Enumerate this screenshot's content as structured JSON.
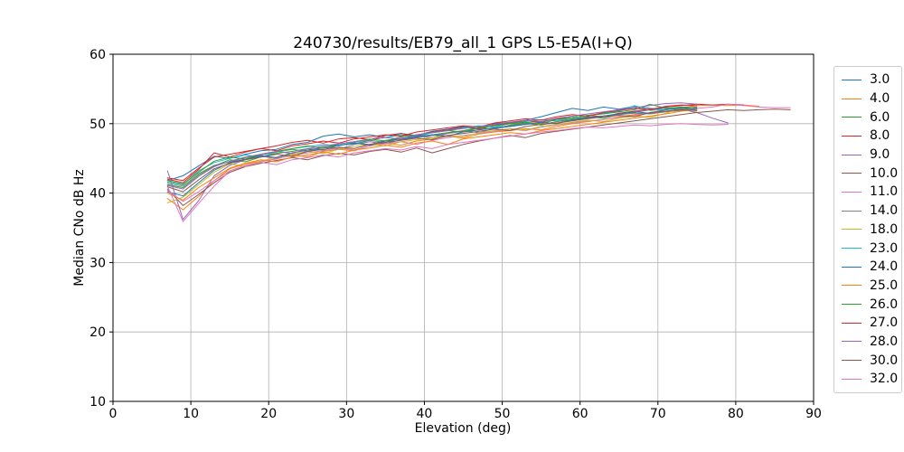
{
  "figure": {
    "title": "240730/results/EB79_all_1 GPS L5-E5A(I+Q)",
    "xlabel": "Elevation (deg)",
    "ylabel": "Median CNo dB Hz"
  },
  "colors": {
    "background": "#ffffff",
    "spine": "#000000",
    "grid": "#b0b0b0",
    "tick": "#000000",
    "legend_border": "#cccccc"
  },
  "chart_data": {
    "type": "line",
    "title": "240730/results/EB79_all_1 GPS L5-E5A(I+Q)",
    "xlabel": "Elevation (deg)",
    "ylabel": "Median CNo dB Hz",
    "xlim": [
      0,
      90
    ],
    "ylim": [
      10,
      60
    ],
    "xticks": [
      0,
      10,
      20,
      30,
      40,
      50,
      60,
      70,
      80,
      90
    ],
    "yticks": [
      10,
      20,
      30,
      40,
      50,
      60
    ],
    "grid": true,
    "legend_position": "outside-right",
    "series": [
      {
        "name": "3.0",
        "color": "#1f77b4",
        "x_start": 7,
        "x_step": 2,
        "values": [
          41.8,
          42.5,
          43.9,
          45.3,
          45.0,
          45.6,
          46.1,
          46.3,
          47.0,
          47.3,
          48.2,
          48.5,
          48.1,
          48.4,
          48.0,
          48.6,
          48.3,
          48.9,
          49.2,
          49.6,
          49.3,
          50.0,
          50.2,
          50.5,
          51.0,
          51.6,
          52.2,
          51.9,
          52.4,
          52.1,
          52.5,
          52.2,
          52.0,
          52.2,
          52.4
        ]
      },
      {
        "name": "4.0",
        "color": "#ff7f0e",
        "x_start": 7,
        "x_step": 2,
        "values": [
          39.2,
          37.6,
          39.5,
          41.8,
          43.5,
          44.2,
          44.6,
          44.9,
          45.6,
          45.2,
          46.0,
          46.3,
          46.1,
          46.8,
          47.2,
          46.9,
          47.5,
          47.8,
          48.2,
          47.9,
          48.5,
          48.8,
          49.0,
          49.3,
          49.1,
          49.6,
          50.0,
          50.3,
          50.6,
          51.0,
          51.3,
          51.6,
          52.0,
          52.3,
          52.6,
          52.7,
          52.6,
          52.7,
          52.5
        ]
      },
      {
        "name": "6.0",
        "color": "#2ca02c",
        "x_start": 7,
        "x_step": 2,
        "values": [
          41.2,
          40.8,
          42.6,
          43.9,
          44.8,
          44.5,
          45.2,
          45.7,
          46.0,
          46.4,
          46.2,
          46.9,
          47.1,
          47.6,
          47.3,
          47.9,
          48.1,
          48.4,
          48.7,
          49.0,
          49.4,
          49.2,
          49.8,
          50.1,
          49.8,
          50.3,
          50.7,
          51.0,
          50.8,
          51.3,
          51.6,
          52.0,
          52.3,
          51.9,
          52.2
        ]
      },
      {
        "name": "8.0",
        "color": "#d62728",
        "x_start": 7,
        "x_step": 2,
        "values": [
          42.0,
          41.5,
          43.4,
          45.8,
          45.2,
          45.9,
          46.4,
          46.8,
          47.3,
          47.6,
          47.2,
          47.8,
          48.0,
          47.7,
          48.3,
          48.6,
          48.2,
          48.8,
          49.1,
          49.5,
          49.2,
          49.8,
          50.1,
          50.4,
          50.2,
          50.7,
          50.9,
          51.2,
          51.0,
          51.5,
          51.8,
          52.1,
          52.4,
          52.6,
          52.8,
          52.7,
          52.8,
          52.7
        ]
      },
      {
        "name": "9.0",
        "color": "#9467bd",
        "x_start": 7,
        "x_step": 2,
        "values": [
          43.2,
          36.2,
          38.9,
          42.5,
          44.0,
          44.8,
          45.3,
          45.0,
          45.8,
          46.2,
          46.6,
          46.3,
          47.0,
          47.4,
          47.1,
          47.7,
          48.0,
          48.3,
          48.6,
          49.0,
          48.7,
          49.3,
          49.6,
          49.9,
          50.2,
          50.0,
          50.5,
          50.8,
          51.1,
          51.4,
          51.7,
          52.0,
          52.3,
          52.1,
          51.6,
          50.8,
          50.1
        ]
      },
      {
        "name": "10.0",
        "color": "#8c564b",
        "x_start": 7,
        "x_step": 2,
        "values": [
          40.6,
          38.2,
          39.8,
          41.5,
          43.0,
          43.8,
          44.3,
          44.7,
          45.1,
          44.8,
          45.4,
          45.7,
          45.5,
          46.0,
          46.3,
          45.9,
          46.5,
          45.8,
          46.4,
          47.0,
          47.5,
          47.9,
          48.3,
          48.0,
          48.6,
          48.9,
          49.2,
          49.5,
          49.8,
          50.1,
          50.4,
          50.7,
          51.0,
          51.3,
          51.6,
          51.8,
          52.0,
          51.9,
          52.0,
          52.1,
          52.0
        ]
      },
      {
        "name": "11.0",
        "color": "#e377c2",
        "x_start": 7,
        "x_step": 2,
        "values": [
          41.0,
          35.9,
          38.5,
          41.0,
          43.2,
          44.0,
          44.5,
          45.0,
          45.4,
          45.8,
          46.1,
          46.5,
          46.2,
          46.8,
          47.1,
          47.4,
          47.0,
          47.6,
          48.0,
          48.3,
          48.6,
          48.9,
          49.2,
          49.0,
          49.5,
          49.8,
          50.1,
          50.4,
          50.6,
          50.9,
          51.2,
          51.5,
          51.8,
          52.0,
          52.2,
          52.4,
          52.8,
          52.6,
          52.4,
          52.3,
          52.3
        ]
      },
      {
        "name": "14.0",
        "color": "#7f7f7f",
        "x_start": 7,
        "x_step": 2,
        "values": [
          41.4,
          41.0,
          42.8,
          44.0,
          44.5,
          45.1,
          45.5,
          45.9,
          46.3,
          46.0,
          46.6,
          46.9,
          47.2,
          47.0,
          47.6,
          47.9,
          48.2,
          48.0,
          48.6,
          48.9,
          49.1,
          49.4,
          49.7,
          50.0,
          49.8,
          50.3,
          50.5,
          50.8,
          51.1,
          51.3,
          51.5,
          51.4,
          51.7,
          51.9,
          52.0
        ]
      },
      {
        "name": "18.0",
        "color": "#bcbd22",
        "x_start": 7,
        "x_step": 2,
        "values": [
          38.6,
          39.4,
          41.2,
          43.0,
          44.2,
          43.8,
          44.6,
          45.2,
          45.6,
          46.0,
          45.7,
          46.3,
          46.7,
          47.0,
          46.8,
          47.4,
          47.7,
          48.0,
          48.3,
          48.1,
          48.7,
          49.0,
          49.3,
          49.1,
          49.6,
          49.9,
          50.2,
          50.5,
          50.3,
          50.8,
          51.1,
          50.9,
          51.5,
          52.2,
          51.8
        ]
      },
      {
        "name": "23.0",
        "color": "#17becf",
        "x_start": 7,
        "x_step": 2,
        "values": [
          41.6,
          41.2,
          43.2,
          44.4,
          45.0,
          45.5,
          45.2,
          45.9,
          46.4,
          46.7,
          47.0,
          46.8,
          47.3,
          47.7,
          48.0,
          48.4,
          48.1,
          48.7,
          49.0,
          49.4,
          49.7,
          49.5,
          50.0,
          50.3,
          50.6,
          50.4,
          50.9,
          51.2,
          51.5,
          51.8,
          52.6,
          51.9,
          52.1,
          52.3
        ]
      },
      {
        "name": "24.0",
        "color": "#1f77b4",
        "x_start": 7,
        "x_step": 2,
        "values": [
          40.2,
          39.6,
          41.5,
          43.3,
          44.4,
          44.9,
          45.4,
          45.1,
          45.8,
          46.2,
          46.5,
          46.9,
          47.2,
          46.9,
          47.5,
          47.8,
          48.1,
          48.4,
          48.2,
          48.8,
          49.1,
          49.4,
          49.6,
          49.9,
          50.2,
          50.0,
          50.6,
          50.9,
          51.1,
          51.4,
          51.7,
          51.5,
          52.0,
          52.2,
          52.1
        ]
      },
      {
        "name": "25.0",
        "color": "#ff7f0e",
        "x_start": 7,
        "x_step": 2,
        "values": [
          40.0,
          39.0,
          40.8,
          42.2,
          43.6,
          44.3,
          44.8,
          44.5,
          45.2,
          45.5,
          45.9,
          45.6,
          46.2,
          46.5,
          46.9,
          46.6,
          47.2,
          47.5,
          47.0,
          47.8,
          48.1,
          48.4,
          48.7,
          48.5,
          49.0,
          49.3,
          49.6,
          49.9,
          50.2,
          50.5,
          50.8,
          51.1,
          51.4,
          51.8,
          52.0
        ]
      },
      {
        "name": "26.0",
        "color": "#2ca02c",
        "x_start": 7,
        "x_step": 2,
        "values": [
          41.8,
          41.3,
          43.0,
          44.6,
          45.2,
          44.9,
          45.6,
          46.0,
          46.4,
          46.8,
          46.5,
          47.1,
          47.4,
          47.8,
          47.5,
          48.1,
          48.4,
          48.7,
          49.0,
          48.8,
          49.4,
          49.7,
          50.0,
          50.2,
          50.0,
          50.6,
          50.9,
          51.2,
          51.4,
          51.7,
          52.0,
          52.8,
          52.2,
          52.4,
          52.3
        ]
      },
      {
        "name": "27.0",
        "color": "#d62728",
        "x_start": 7,
        "x_step": 2,
        "values": [
          42.2,
          41.8,
          43.6,
          45.2,
          45.6,
          46.0,
          46.4,
          46.1,
          46.8,
          47.1,
          47.5,
          47.2,
          47.8,
          48.1,
          48.4,
          48.2,
          48.8,
          49.1,
          49.4,
          49.7,
          49.5,
          50.1,
          50.4,
          50.7,
          50.5,
          51.0,
          51.3,
          51.1,
          51.6,
          51.9,
          52.2,
          52.0,
          52.5,
          52.7,
          52.6
        ]
      },
      {
        "name": "28.0",
        "color": "#9467bd",
        "x_start": 7,
        "x_step": 2,
        "values": [
          41.1,
          40.6,
          42.4,
          43.8,
          44.6,
          45.2,
          45.6,
          46.0,
          45.7,
          46.4,
          46.8,
          47.1,
          47.4,
          47.7,
          48.0,
          47.8,
          48.4,
          48.7,
          49.0,
          49.3,
          49.6,
          49.9,
          50.2,
          50.5,
          50.3,
          50.8,
          51.1,
          51.4,
          51.7,
          52.0,
          52.3,
          52.6,
          52.9,
          53.0,
          52.8
        ]
      },
      {
        "name": "30.0",
        "color": "#8c564b",
        "x_start": 7,
        "x_step": 2,
        "values": [
          40.9,
          40.2,
          41.9,
          43.5,
          44.3,
          44.8,
          45.2,
          45.6,
          45.3,
          46.0,
          46.3,
          46.6,
          46.4,
          47.0,
          47.3,
          47.6,
          47.9,
          47.7,
          48.3,
          48.6,
          48.9,
          49.2,
          49.0,
          49.6,
          49.9,
          50.1,
          50.4,
          50.7,
          51.0,
          51.2,
          51.0,
          51.6,
          51.8,
          52.0,
          51.9
        ]
      },
      {
        "name": "32.0",
        "color": "#e377c2",
        "x_start": 7,
        "x_step": 2,
        "values": [
          40.4,
          38.8,
          40.2,
          41.8,
          43.2,
          43.9,
          44.4,
          44.1,
          44.8,
          45.1,
          45.5,
          45.2,
          45.8,
          46.1,
          46.4,
          46.2,
          46.7,
          46.4,
          47.0,
          47.3,
          47.6,
          47.9,
          48.2,
          48.5,
          48.8,
          49.0,
          49.3,
          49.5,
          49.4,
          49.6,
          49.8,
          49.7,
          49.9,
          50.0,
          49.9,
          49.8,
          49.9
        ]
      }
    ]
  }
}
